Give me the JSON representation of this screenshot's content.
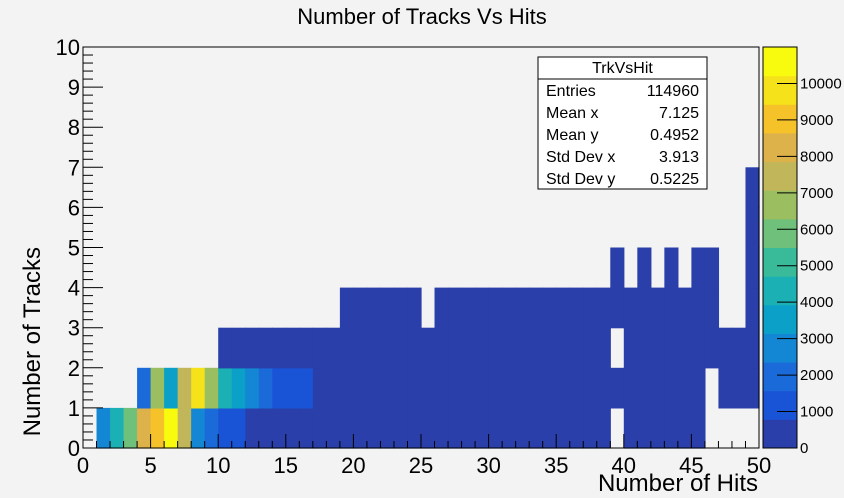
{
  "chart_data": {
    "type": "heatmap",
    "title": "Number of Tracks Vs Hits",
    "xlabel": "Number of Hits",
    "ylabel": "Number of Tracks",
    "xlim": [
      0,
      50
    ],
    "ylim": [
      0,
      10
    ],
    "x_ticks": [
      0,
      5,
      10,
      15,
      20,
      25,
      30,
      35,
      40,
      45,
      50
    ],
    "y_ticks": [
      0,
      1,
      2,
      3,
      4,
      5,
      6,
      7,
      8,
      9,
      10
    ],
    "z_ticks": [
      0,
      1000,
      2000,
      3000,
      4000,
      5000,
      6000,
      7000,
      8000,
      9000,
      10000
    ],
    "z_max": 11000,
    "grid": false,
    "stats_box": {
      "name": "TrkVsHit",
      "rows": [
        {
          "label": "Entries",
          "value": "114960"
        },
        {
          "label": "Mean x",
          "value": "7.125"
        },
        {
          "label": "Mean y",
          "value": "0.4952"
        },
        {
          "label": "Std Dev x",
          "value": "3.913"
        },
        {
          "label": "Std Dev y",
          "value": "0.5225"
        }
      ]
    },
    "bin_width": 1,
    "bins_by_row": [
      {
        "y": 0,
        "cells": [
          [
            1,
            2500
          ],
          [
            2,
            4200
          ],
          [
            3,
            5800
          ],
          [
            4,
            8300
          ],
          [
            5,
            9400
          ],
          [
            6,
            10500
          ],
          [
            7,
            7800
          ],
          [
            8,
            2900
          ],
          [
            9,
            1800
          ],
          [
            10,
            1400
          ],
          [
            11,
            1200
          ],
          [
            12,
            700
          ],
          [
            13,
            200
          ],
          [
            14,
            200
          ],
          [
            15,
            200
          ],
          [
            16,
            200
          ],
          [
            17,
            200
          ],
          [
            18,
            200
          ],
          [
            19,
            200
          ],
          [
            20,
            200
          ],
          [
            21,
            200
          ],
          [
            22,
            200
          ],
          [
            23,
            200
          ],
          [
            24,
            200
          ],
          [
            25,
            200
          ],
          [
            26,
            200
          ],
          [
            27,
            200
          ],
          [
            28,
            200
          ],
          [
            29,
            200
          ],
          [
            30,
            200
          ],
          [
            31,
            200
          ],
          [
            32,
            200
          ],
          [
            33,
            200
          ],
          [
            34,
            200
          ],
          [
            35,
            200
          ],
          [
            36,
            200
          ],
          [
            37,
            200
          ],
          [
            38,
            200
          ],
          [
            40,
            200
          ],
          [
            41,
            200
          ],
          [
            42,
            200
          ],
          [
            43,
            200
          ],
          [
            44,
            200
          ],
          [
            45,
            200
          ]
        ]
      },
      {
        "y": 1,
        "cells": [
          [
            4,
            2200
          ],
          [
            5,
            6500
          ],
          [
            6,
            3500
          ],
          [
            7,
            7200
          ],
          [
            8,
            10200
          ],
          [
            9,
            6400
          ],
          [
            10,
            4200
          ],
          [
            11,
            3200
          ],
          [
            12,
            2500
          ],
          [
            13,
            1900
          ],
          [
            14,
            1400
          ],
          [
            15,
            1400
          ],
          [
            16,
            1400
          ],
          [
            17,
            200
          ],
          [
            18,
            200
          ],
          [
            19,
            200
          ],
          [
            20,
            200
          ],
          [
            21,
            200
          ],
          [
            22,
            200
          ],
          [
            23,
            200
          ],
          [
            24,
            200
          ],
          [
            25,
            200
          ],
          [
            26,
            200
          ],
          [
            27,
            200
          ],
          [
            28,
            200
          ],
          [
            29,
            200
          ],
          [
            30,
            200
          ],
          [
            31,
            200
          ],
          [
            32,
            200
          ],
          [
            33,
            200
          ],
          [
            34,
            200
          ],
          [
            35,
            200
          ],
          [
            36,
            200
          ],
          [
            37,
            200
          ],
          [
            38,
            200
          ],
          [
            39,
            200
          ],
          [
            40,
            200
          ],
          [
            41,
            200
          ],
          [
            42,
            200
          ],
          [
            43,
            200
          ],
          [
            44,
            200
          ],
          [
            45,
            200
          ],
          [
            47,
            200
          ],
          [
            48,
            200
          ],
          [
            49,
            200
          ]
        ]
      },
      {
        "y": 2,
        "cells": [
          [
            10,
            200
          ],
          [
            11,
            200
          ],
          [
            12,
            200
          ],
          [
            13,
            200
          ],
          [
            14,
            200
          ],
          [
            15,
            200
          ],
          [
            16,
            200
          ],
          [
            17,
            200
          ],
          [
            18,
            200
          ],
          [
            19,
            200
          ],
          [
            20,
            200
          ],
          [
            21,
            200
          ],
          [
            22,
            200
          ],
          [
            23,
            200
          ],
          [
            24,
            200
          ],
          [
            25,
            200
          ],
          [
            26,
            200
          ],
          [
            27,
            200
          ],
          [
            28,
            200
          ],
          [
            29,
            200
          ],
          [
            30,
            200
          ],
          [
            31,
            200
          ],
          [
            32,
            200
          ],
          [
            33,
            200
          ],
          [
            34,
            200
          ],
          [
            35,
            200
          ],
          [
            36,
            200
          ],
          [
            37,
            200
          ],
          [
            38,
            200
          ],
          [
            40,
            200
          ],
          [
            41,
            200
          ],
          [
            42,
            200
          ],
          [
            43,
            200
          ],
          [
            44,
            200
          ],
          [
            45,
            200
          ],
          [
            46,
            200
          ],
          [
            47,
            200
          ],
          [
            48,
            200
          ],
          [
            49,
            200
          ]
        ]
      },
      {
        "y": 3,
        "cells": [
          [
            19,
            200
          ],
          [
            20,
            200
          ],
          [
            21,
            200
          ],
          [
            22,
            200
          ],
          [
            23,
            200
          ],
          [
            24,
            200
          ],
          [
            26,
            200
          ],
          [
            27,
            200
          ],
          [
            28,
            200
          ],
          [
            29,
            200
          ],
          [
            30,
            200
          ],
          [
            31,
            200
          ],
          [
            32,
            200
          ],
          [
            33,
            200
          ],
          [
            34,
            200
          ],
          [
            35,
            200
          ],
          [
            36,
            200
          ],
          [
            37,
            200
          ],
          [
            38,
            200
          ],
          [
            39,
            200
          ],
          [
            40,
            200
          ],
          [
            41,
            200
          ],
          [
            42,
            200
          ],
          [
            43,
            200
          ],
          [
            44,
            200
          ],
          [
            45,
            200
          ],
          [
            46,
            200
          ]
        ]
      },
      {
        "y": 4,
        "cells": [
          [
            39,
            200
          ],
          [
            41,
            200
          ],
          [
            43,
            200
          ],
          [
            45,
            200
          ],
          [
            46,
            200
          ]
        ]
      },
      {
        "y": 5,
        "cells": [
          [
            49,
            200
          ]
        ]
      },
      {
        "y": 6,
        "cells": [
          [
            49,
            200
          ]
        ]
      }
    ],
    "extra_cells": [
      [
        49,
        3
      ],
      [
        49,
        4
      ]
    ],
    "palette": [
      "#2a3fa9",
      "#1a54d6",
      "#1b6ad9",
      "#1487d4",
      "#0aa0c8",
      "#1bb0b3",
      "#39bb9a",
      "#6ec07a",
      "#9bbf60",
      "#c1b75a",
      "#ddb24a",
      "#f6c22a",
      "#f5e21b",
      "#f9fb0e"
    ]
  }
}
